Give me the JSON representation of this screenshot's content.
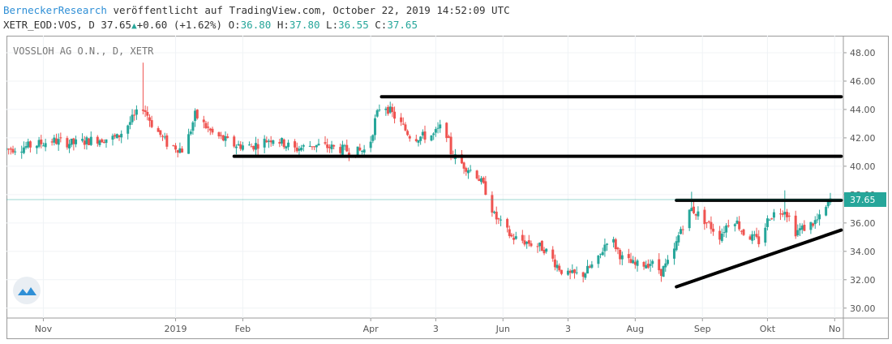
{
  "header": {
    "brand": "BerneckerResearch",
    "published": " veröffentlicht auf TradingView.com, October 22, 2019 14:52:09 UTC",
    "symbol": "XETR_EOD:VOS, D",
    "last": "37.65",
    "change": "+0.60 (+1.62%)",
    "o_label": "O:",
    "o_value": "36.80",
    "h_label": "H:",
    "h_value": "37.80",
    "l_label": "L:",
    "l_value": "36.55",
    "c_label": "C:",
    "c_value": "37.65"
  },
  "chart_data": {
    "type": "candlestick",
    "title": "VOSSLOH AG O.N., D, XETR",
    "y_axis": {
      "ticks": [
        "48.00",
        "46.00",
        "44.00",
        "42.00",
        "40.00",
        "38.00",
        "36.00",
        "34.00",
        "32.00",
        "30.00"
      ],
      "range": [
        29.3,
        49.2
      ]
    },
    "x_axis": {
      "ticks": [
        "Nov",
        "2019",
        "Feb",
        "Apr",
        "3",
        "Jun",
        "3",
        "Aug",
        "Sep",
        "Okt",
        "No"
      ],
      "range": [
        "2018-10-15",
        "2019-11-05"
      ]
    },
    "last_price_label": "37.65",
    "last_price": 37.65,
    "up_color": "#26a69a",
    "down_color": "#ef5350",
    "logo_icon": "tradingview-cloud-icon",
    "price_path": [
      [
        "2018-10-15",
        41.2
      ],
      [
        "2018-10-25",
        41.4
      ],
      [
        "2018-11-05",
        41.8
      ],
      [
        "2018-11-15",
        41.6
      ],
      [
        "2018-11-25",
        41.9
      ],
      [
        "2018-12-05",
        42.0
      ],
      [
        "2018-12-12",
        43.3
      ],
      [
        "2018-12-17",
        44.2
      ],
      [
        "2018-12-21",
        43.0
      ],
      [
        "2018-12-28",
        41.6
      ],
      [
        "2019-01-05",
        41.1
      ],
      [
        "2019-01-10",
        43.6
      ],
      [
        "2019-01-18",
        42.3
      ],
      [
        "2019-01-28",
        41.5
      ],
      [
        "2019-02-05",
        41.4
      ],
      [
        "2019-02-15",
        42.0
      ],
      [
        "2019-02-25",
        41.2
      ],
      [
        "2019-03-05",
        41.5
      ],
      [
        "2019-03-15",
        41.3
      ],
      [
        "2019-03-25",
        41.0
      ],
      [
        "2019-03-31",
        41.2
      ],
      [
        "2019-04-03",
        43.2
      ],
      [
        "2019-04-06",
        44.6
      ],
      [
        "2019-04-12",
        43.5
      ],
      [
        "2019-04-20",
        42.0
      ],
      [
        "2019-04-30",
        42.2
      ],
      [
        "2019-05-05",
        43.0
      ],
      [
        "2019-05-08",
        41.0
      ],
      [
        "2019-05-11",
        40.4
      ],
      [
        "2019-05-20",
        39.4
      ],
      [
        "2019-05-25",
        38.0
      ],
      [
        "2019-05-28",
        36.5
      ],
      [
        "2019-06-05",
        35.0
      ],
      [
        "2019-06-13",
        34.6
      ],
      [
        "2019-06-20",
        34.2
      ],
      [
        "2019-06-25",
        33.2
      ],
      [
        "2019-06-30",
        32.3
      ],
      [
        "2019-07-08",
        32.4
      ],
      [
        "2019-07-15",
        33.4
      ],
      [
        "2019-07-20",
        35.2
      ],
      [
        "2019-07-26",
        33.5
      ],
      [
        "2019-08-01",
        33.0
      ],
      [
        "2019-08-08",
        33.2
      ],
      [
        "2019-08-13",
        32.6
      ],
      [
        "2019-08-18",
        33.5
      ],
      [
        "2019-08-22",
        35.6
      ],
      [
        "2019-08-27",
        37.0
      ],
      [
        "2019-09-02",
        36.2
      ],
      [
        "2019-09-09",
        35.1
      ],
      [
        "2019-09-15",
        36.5
      ],
      [
        "2019-09-20",
        35.3
      ],
      [
        "2019-09-27",
        34.7
      ],
      [
        "2019-10-02",
        36.5
      ],
      [
        "2019-10-09",
        37.0
      ],
      [
        "2019-10-14",
        35.4
      ],
      [
        "2019-10-20",
        35.8
      ],
      [
        "2019-10-26",
        36.4
      ],
      [
        "2019-10-30",
        37.65
      ]
    ],
    "spikes": [
      {
        "date": "2018-12-17",
        "high": 47.3
      },
      {
        "date": "2019-08-27",
        "high": 38.2
      },
      {
        "date": "2019-10-09",
        "high": 38.3
      }
    ],
    "drawn_lines": [
      {
        "name": "resistance-44-9",
        "from": [
          "2019-04-06",
          44.9
        ],
        "to": [
          "2019-11-04",
          44.9
        ]
      },
      {
        "name": "support-40-7",
        "from": [
          "2019-01-28",
          40.7
        ],
        "to": [
          "2019-11-04",
          40.7
        ]
      },
      {
        "name": "resistance-37-6",
        "from": [
          "2019-08-20",
          37.6
        ],
        "to": [
          "2019-11-04",
          37.6
        ]
      },
      {
        "name": "rising-trendline",
        "from": [
          "2019-08-20",
          31.5
        ],
        "to": [
          "2019-11-04",
          35.5
        ]
      }
    ]
  }
}
